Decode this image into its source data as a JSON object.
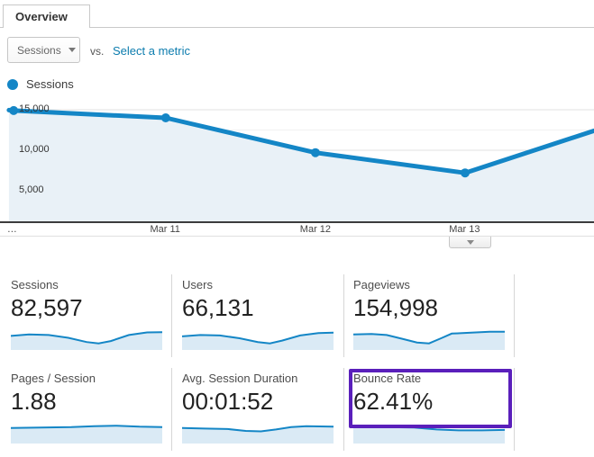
{
  "tab": {
    "label": "Overview"
  },
  "controls": {
    "metric_dropdown_label": "Sessions",
    "vs_label": "vs.",
    "select_metric_label": "Select a metric"
  },
  "legend": {
    "items": [
      {
        "label": "Sessions",
        "color": "#1486c6"
      }
    ]
  },
  "colors": {
    "accent": "#1486c6",
    "area_fill": "#e9f1f7",
    "spark_fill": "#daeaf5",
    "grid_major": "#e2e2e2",
    "grid_minor": "#f1f1f1",
    "axis": "#3c3c3c",
    "link": "#0c7cae",
    "highlight": "#5a1fbb"
  },
  "chart_data": {
    "type": "line",
    "title": "Sessions",
    "series": [
      {
        "name": "Sessions",
        "points": [
          {
            "x": 0.015,
            "value": 14950,
            "dot": false
          },
          {
            "x": 0.023,
            "value": 14900,
            "dot": true
          },
          {
            "x": 0.279,
            "value": 14000,
            "dot": true
          },
          {
            "x": 0.531,
            "value": 9700,
            "dot": true
          },
          {
            "x": 0.783,
            "value": 7200,
            "dot": true
          },
          {
            "x": 1.0,
            "value": 12400,
            "dot": false
          }
        ]
      }
    ],
    "x_ticks": [
      "…",
      "Mar 11",
      "Mar 12",
      "Mar 13"
    ],
    "x_tick_pos": [
      0.012,
      0.278,
      0.531,
      0.782
    ],
    "y_ticks": [
      15000,
      10000,
      5000
    ],
    "y_tick_labels": [
      "15,000",
      "10,000",
      "5,000"
    ],
    "y_minor_ticks": [
      12500,
      7500,
      2500
    ],
    "ylim": [
      1200,
      16500
    ],
    "grid": true,
    "legend_position": "top-left"
  },
  "metric_cards": [
    {
      "label": "Sessions",
      "value": "82,597",
      "sparkline": [
        [
          0,
          0.4
        ],
        [
          0.12,
          0.34
        ],
        [
          0.25,
          0.36
        ],
        [
          0.38,
          0.48
        ],
        [
          0.5,
          0.66
        ],
        [
          0.58,
          0.72
        ],
        [
          0.66,
          0.62
        ],
        [
          0.78,
          0.36
        ],
        [
          0.9,
          0.25
        ],
        [
          1,
          0.24
        ]
      ]
    },
    {
      "label": "Users",
      "value": "66,131",
      "sparkline": [
        [
          0,
          0.42
        ],
        [
          0.12,
          0.36
        ],
        [
          0.25,
          0.38
        ],
        [
          0.38,
          0.5
        ],
        [
          0.5,
          0.66
        ],
        [
          0.58,
          0.72
        ],
        [
          0.66,
          0.6
        ],
        [
          0.78,
          0.38
        ],
        [
          0.9,
          0.28
        ],
        [
          1,
          0.26
        ]
      ]
    },
    {
      "label": "Pageviews",
      "value": "154,998",
      "sparkline": [
        [
          0,
          0.34
        ],
        [
          0.12,
          0.32
        ],
        [
          0.22,
          0.36
        ],
        [
          0.32,
          0.52
        ],
        [
          0.42,
          0.68
        ],
        [
          0.5,
          0.72
        ],
        [
          0.58,
          0.5
        ],
        [
          0.65,
          0.3
        ],
        [
          0.78,
          0.26
        ],
        [
          0.9,
          0.22
        ],
        [
          1,
          0.22
        ]
      ]
    },
    {
      "label": "Pages / Session",
      "value": "1.88",
      "sparkline": [
        [
          0,
          0.34
        ],
        [
          0.2,
          0.32
        ],
        [
          0.4,
          0.3
        ],
        [
          0.55,
          0.26
        ],
        [
          0.7,
          0.24
        ],
        [
          0.85,
          0.28
        ],
        [
          1,
          0.3
        ]
      ]
    },
    {
      "label": "Avg. Session Duration",
      "value": "00:01:52",
      "sparkline": [
        [
          0,
          0.34
        ],
        [
          0.15,
          0.36
        ],
        [
          0.3,
          0.38
        ],
        [
          0.42,
          0.46
        ],
        [
          0.52,
          0.48
        ],
        [
          0.62,
          0.4
        ],
        [
          0.72,
          0.3
        ],
        [
          0.82,
          0.26
        ],
        [
          1,
          0.28
        ]
      ]
    },
    {
      "label": "Bounce Rate",
      "value": "62.41%",
      "sparkline": [
        [
          0,
          0.3
        ],
        [
          0.2,
          0.3
        ],
        [
          0.4,
          0.32
        ],
        [
          0.55,
          0.4
        ],
        [
          0.7,
          0.44
        ],
        [
          0.85,
          0.44
        ],
        [
          1,
          0.42
        ]
      ]
    }
  ]
}
